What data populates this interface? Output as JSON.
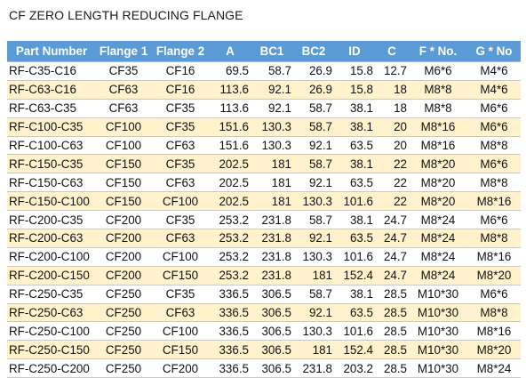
{
  "title": "CF ZERO LENGTH REDUCING FLANGE",
  "colors": {
    "header_bg": "#5b9bd5",
    "header_text": "#ffffff",
    "band_row": "#fff2cc",
    "plain_row": "#ffffff"
  },
  "columns": [
    "Part Number",
    "Flange 1",
    "Flange 2",
    "A",
    "BC1",
    "BC2",
    "ID",
    "C",
    "F * No.",
    "G * No"
  ],
  "rows": [
    [
      "RF-C35-C16",
      "CF35",
      "CF16",
      "69.5",
      "58.7",
      "26.9",
      "15.8",
      "12.7",
      "M6*6",
      "M4*6"
    ],
    [
      "RF-C63-C16",
      "CF63",
      "CF16",
      "113.6",
      "92.1",
      "26.9",
      "15.8",
      "18",
      "M8*8",
      "M4*6"
    ],
    [
      "RF-C63-C35",
      "CF63",
      "CF35",
      "113.6",
      "92.1",
      "58.7",
      "38.1",
      "18",
      "M8*8",
      "M6*6"
    ],
    [
      "RF-C100-C35",
      "CF100",
      "CF35",
      "151.6",
      "130.3",
      "58.7",
      "38.1",
      "20",
      "M8*16",
      "M6*6"
    ],
    [
      "RF-C100-C63",
      "CF100",
      "CF63",
      "151.6",
      "130.3",
      "92.1",
      "63.5",
      "20",
      "M8*16",
      "M8*8"
    ],
    [
      "RF-C150-C35",
      "CF150",
      "CF35",
      "202.5",
      "181",
      "58.7",
      "38.1",
      "22",
      "M8*20",
      "M6*6"
    ],
    [
      "RF-C150-C63",
      "CF150",
      "CF63",
      "202.5",
      "181",
      "92.1",
      "63.5",
      "22",
      "M8*20",
      "M8*8"
    ],
    [
      "RF-C150-C100",
      "CF150",
      "CF100",
      "202.5",
      "181",
      "130.3",
      "101.6",
      "22",
      "M8*20",
      "M8*16"
    ],
    [
      "RF-C200-C35",
      "CF200",
      "CF35",
      "253.2",
      "231.8",
      "58.7",
      "38.1",
      "24.7",
      "M8*24",
      "M6*6"
    ],
    [
      "RF-C200-C63",
      "CF200",
      "CF63",
      "253.2",
      "231.8",
      "92.1",
      "63.5",
      "24.7",
      "M8*24",
      "M8*8"
    ],
    [
      "RF-C200-C100",
      "CF200",
      "CF100",
      "253.2",
      "231.8",
      "130.3",
      "101.6",
      "24.7",
      "M8*24",
      "M8*16"
    ],
    [
      "RF-C200-C150",
      "CF200",
      "CF150",
      "253.2",
      "231.8",
      "181",
      "152.4",
      "24.7",
      "M8*24",
      "M8*20"
    ],
    [
      "RF-C250-C35",
      "CF250",
      "CF35",
      "336.5",
      "306.5",
      "58.7",
      "38.1",
      "28.5",
      "M10*30",
      "M6*6"
    ],
    [
      "RF-C250-C63",
      "CF250",
      "CF63",
      "336.5",
      "306.5",
      "92.1",
      "63.5",
      "28.5",
      "M10*30",
      "M8*8"
    ],
    [
      "RF-C250-C100",
      "CF250",
      "CF100",
      "336.5",
      "306.5",
      "130.3",
      "101.6",
      "28.5",
      "M10*30",
      "M8*16"
    ],
    [
      "RF-C250-C150",
      "CF250",
      "CF150",
      "336.5",
      "306.5",
      "181",
      "152.4",
      "28.5",
      "M10*30",
      "M8*20"
    ],
    [
      "RF-C250-C200",
      "CF250",
      "CF200",
      "336.5",
      "306.5",
      "231.8",
      "203.2",
      "28.5",
      "M10*30",
      "M8*24"
    ]
  ]
}
